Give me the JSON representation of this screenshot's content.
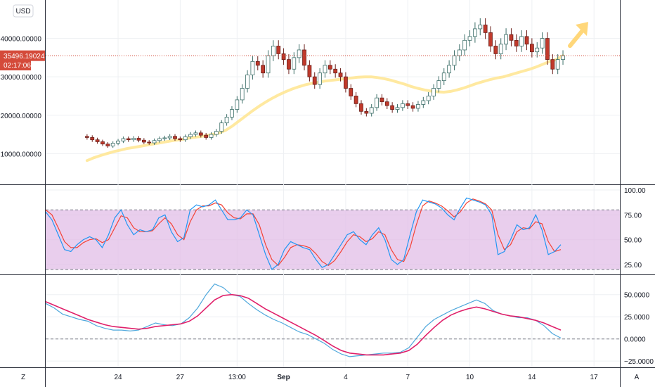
{
  "currency_label": "USD",
  "price_flag": "35496.19024",
  "timer_flag": "02:17:06",
  "bottom_left_button": "Z",
  "bottom_right_button": "A",
  "colors": {
    "up": "#26a69a",
    "down": "#c0392b",
    "ma": "#ffe58f",
    "stoch_k": "#2196f3",
    "stoch_d": "#f44336",
    "band_fill": "#e1bee7",
    "macd_line": "#4fa8dc",
    "signal_line": "#e0206a",
    "arrow": "#ffd77a",
    "flag": "#d44a3a"
  },
  "chart_data": [
    {
      "type": "candlestick",
      "panel": "price",
      "yticks": [
        "40000.00000",
        "30000.00000",
        "20000.00000",
        "10000.00000"
      ],
      "ytick_values": [
        40000,
        30000,
        20000,
        10000
      ],
      "ylim": [
        2000,
        50000
      ],
      "xticks": [
        "24",
        "27",
        "13:00",
        "Sep",
        "4",
        "7",
        "10",
        "14",
        "17"
      ],
      "xtick_positions": [
        6,
        18,
        29,
        38,
        50,
        62,
        74,
        86,
        98
      ],
      "xlim": [
        -8,
        103
      ],
      "current_price": 35496.19024,
      "close": [
        14200,
        13600,
        13100,
        12500,
        12000,
        12700,
        13300,
        13900,
        13600,
        14000,
        13500,
        13000,
        12800,
        13400,
        13900,
        14100,
        14500,
        13900,
        13600,
        14400,
        15000,
        15400,
        14800,
        14200,
        15000,
        15800,
        18000,
        19500,
        21500,
        24000,
        27000,
        30500,
        34000,
        33000,
        31000,
        35500,
        38000,
        36000,
        34500,
        32000,
        35000,
        37000,
        33000,
        30000,
        28000,
        31000,
        33000,
        32000,
        31000,
        30000,
        27000,
        25000,
        23000,
        21000,
        20500,
        22000,
        24500,
        23500,
        22500,
        21500,
        22000,
        23000,
        22500,
        21800,
        22800,
        23800,
        25000,
        27000,
        29000,
        31000,
        33000,
        35500,
        37000,
        39500,
        40500,
        42500,
        43500,
        41500,
        38000,
        36000,
        38500,
        41000,
        39500,
        38000,
        40500,
        38500,
        36500,
        37500,
        40000,
        34500,
        32000,
        34500,
        35496
      ],
      "ma": [
        8200,
        8900,
        9500,
        10000,
        10500,
        10900,
        11300,
        11600,
        11900,
        12200,
        12500,
        12800,
        13100,
        13400,
        13600,
        13900,
        14200,
        14400,
        14700,
        15000,
        15400,
        16100,
        17200,
        18500,
        19800,
        21100,
        22300,
        23400,
        24400,
        25300,
        26100,
        26800,
        27400,
        27900,
        28300,
        28600,
        28900,
        29100,
        29300,
        29500,
        29700,
        29900,
        30000,
        30000,
        29800,
        29500,
        29100,
        28600,
        28100,
        27500,
        27000,
        26600,
        26300,
        26100,
        26000,
        26200,
        26600,
        27100,
        27700,
        28300,
        28800,
        29300,
        29700,
        30000,
        30500,
        31000,
        31500,
        32000,
        32600,
        33300,
        34000,
        34500,
        35500
      ]
    },
    {
      "type": "line",
      "panel": "stochastic",
      "yticks": [
        "100.00",
        "75.00",
        "50.00",
        "25.00"
      ],
      "ytick_values": [
        100,
        75,
        50,
        25
      ],
      "ylim": [
        15,
        105
      ],
      "band": [
        20,
        80
      ],
      "series": [
        {
          "values": [
            78,
            70,
            55,
            40,
            38,
            45,
            50,
            53,
            50,
            42,
            55,
            72,
            80,
            65,
            55,
            60,
            58,
            60,
            72,
            75,
            58,
            48,
            52,
            80,
            85,
            83,
            85,
            90,
            80,
            70,
            70,
            72,
            80,
            75,
            55,
            35,
            20,
            25,
            40,
            48,
            45,
            42,
            40,
            30,
            22,
            25,
            35,
            45,
            55,
            58,
            50,
            45,
            55,
            62,
            50,
            30,
            25,
            30,
            55,
            78,
            90,
            88,
            86,
            82,
            75,
            70,
            82,
            92,
            90,
            88,
            85,
            75,
            35,
            38,
            50,
            65,
            60,
            62,
            75,
            60,
            35,
            38,
            45
          ]
        },
        {
          "values": [
            80,
            75,
            62,
            48,
            42,
            42,
            47,
            50,
            51,
            47,
            50,
            62,
            74,
            72,
            62,
            58,
            58,
            59,
            66,
            72,
            66,
            55,
            50,
            68,
            80,
            84,
            84,
            87,
            85,
            77,
            72,
            71,
            76,
            76,
            65,
            45,
            30,
            24,
            32,
            42,
            45,
            44,
            42,
            36,
            28,
            24,
            29,
            38,
            48,
            55,
            53,
            48,
            51,
            58,
            55,
            40,
            30,
            28,
            42,
            65,
            84,
            89,
            87,
            84,
            79,
            73,
            78,
            87,
            91,
            89,
            86,
            80,
            55,
            40,
            45,
            58,
            62,
            61,
            68,
            66,
            48,
            38,
            40
          ]
        }
      ]
    },
    {
      "type": "line",
      "panel": "macd",
      "yticks": [
        "50.0000",
        "25.0000",
        "0.0000",
        "−25.0000"
      ],
      "ytick_values": [
        50,
        25,
        0,
        -25
      ],
      "ylim": [
        -32,
        72
      ],
      "series": [
        {
          "values": [
            40,
            35,
            28,
            25,
            22,
            20,
            15,
            12,
            10,
            10,
            9,
            10,
            14,
            18,
            16,
            15,
            17,
            24,
            35,
            50,
            62,
            58,
            50,
            48,
            40,
            33,
            27,
            22,
            18,
            13,
            8,
            5,
            0,
            -5,
            -12,
            -17,
            -20,
            -19,
            -18,
            -17,
            -16,
            -16,
            -15,
            -10,
            2,
            14,
            22,
            27,
            32,
            36,
            40,
            44,
            40,
            32,
            28,
            26,
            24,
            24,
            21,
            15,
            6,
            1
          ]
        },
        {
          "values": [
            42,
            38,
            34,
            30,
            26,
            22,
            19,
            16,
            14,
            13,
            12,
            11,
            12,
            14,
            15,
            16,
            17,
            20,
            26,
            35,
            44,
            49,
            50,
            49,
            46,
            40,
            34,
            29,
            24,
            19,
            14,
            9,
            4,
            -2,
            -8,
            -13,
            -16,
            -17,
            -18,
            -18,
            -18,
            -17,
            -16,
            -13,
            -6,
            4,
            13,
            21,
            27,
            31,
            34,
            36,
            34,
            31,
            28,
            26,
            25,
            23,
            21,
            18,
            14,
            10
          ]
        }
      ]
    }
  ]
}
